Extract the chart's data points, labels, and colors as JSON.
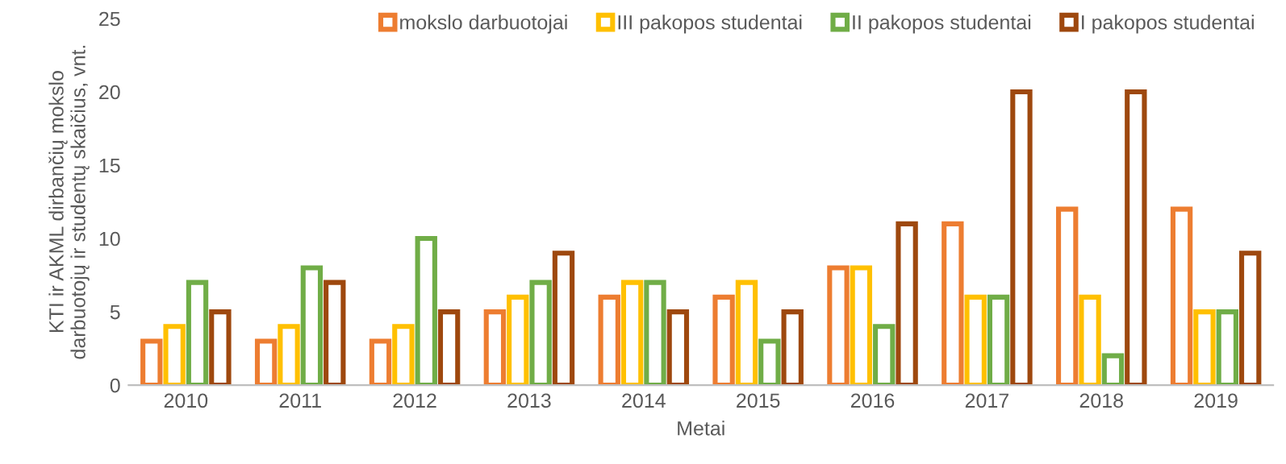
{
  "chart_data": {
    "type": "bar",
    "xlabel": "Metai",
    "ylabel": "KTI ir AKML dirbančių mokslo\ndarbuotojų ir studentų skaičius, vnt.",
    "categories": [
      "2010",
      "2011",
      "2012",
      "2013",
      "2014",
      "2015",
      "2016",
      "2017",
      "2018",
      "2019"
    ],
    "series": [
      {
        "name": "mokslo darbuotojai",
        "color": "#ed7d31",
        "values": [
          3,
          3,
          3,
          5,
          6,
          6,
          8,
          11,
          12,
          12
        ]
      },
      {
        "name": "III pakopos studentai",
        "color": "#ffc000",
        "values": [
          4,
          4,
          4,
          6,
          7,
          7,
          8,
          6,
          6,
          5
        ]
      },
      {
        "name": "II pakopos studentai",
        "color": "#70ad47",
        "values": [
          7,
          8,
          10,
          7,
          7,
          3,
          4,
          6,
          2,
          5
        ]
      },
      {
        "name": "I pakopos studentai",
        "color": "#9e480e",
        "values": [
          5,
          7,
          5,
          9,
          5,
          5,
          11,
          20,
          20,
          9
        ]
      }
    ],
    "ylim": [
      0,
      25
    ],
    "yticks": [
      0,
      5,
      10,
      15,
      20,
      25
    ],
    "grid": false,
    "legend": "top right"
  }
}
